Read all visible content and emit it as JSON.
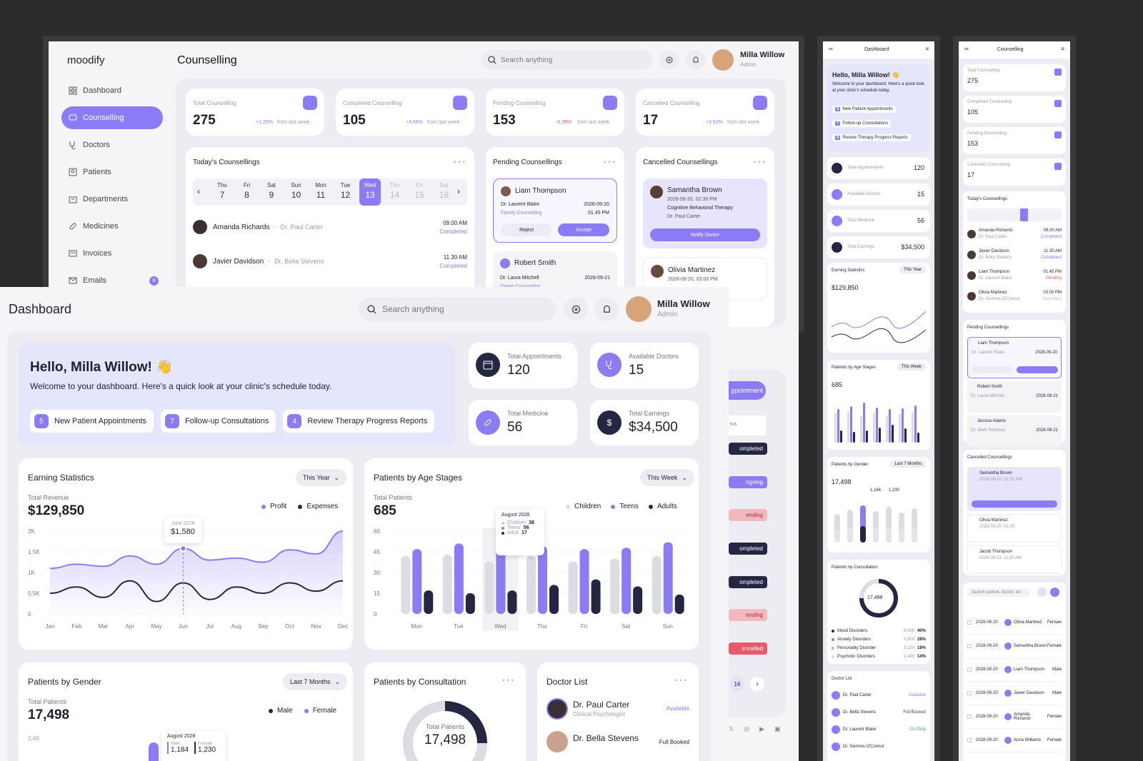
{
  "counselling": {
    "logo": "moodify",
    "title": "Counselling",
    "search_placeholder": "Search anything",
    "user": {
      "name": "Milla Willow",
      "role": "Admin"
    },
    "nav": [
      {
        "label": "Dashboard"
      },
      {
        "label": "Counselling"
      },
      {
        "label": "Doctors"
      },
      {
        "label": "Patients"
      },
      {
        "label": "Departments"
      },
      {
        "label": "Medicines"
      },
      {
        "label": "Invoices"
      },
      {
        "label": "Emails",
        "badge": "6"
      }
    ],
    "stats": [
      {
        "label": "Total Counselling",
        "value": "275",
        "delta": "+1.25%",
        "suffix": "from last week"
      },
      {
        "label": "Completed Counselling",
        "value": "105",
        "delta": "+4.56%",
        "suffix": "from last week"
      },
      {
        "label": "Pending Counselling",
        "value": "153",
        "delta": "-0.78%",
        "suffix": "from last week"
      },
      {
        "label": "Cancelled Counselling",
        "value": "17",
        "delta": "+3.62%",
        "suffix": "from last week"
      }
    ],
    "today": {
      "title": "Today's Counsellings",
      "days": [
        {
          "d": "Thu",
          "n": "7"
        },
        {
          "d": "Fri",
          "n": "8"
        },
        {
          "d": "Sat",
          "n": "9"
        },
        {
          "d": "Sun",
          "n": "10"
        },
        {
          "d": "Mon",
          "n": "11"
        },
        {
          "d": "Tue",
          "n": "12"
        },
        {
          "d": "Wed",
          "n": "13"
        },
        {
          "d": "Thu",
          "n": "14"
        },
        {
          "d": "Fri",
          "n": "15"
        },
        {
          "d": "Sat",
          "n": "16"
        }
      ],
      "items": [
        {
          "patient": "Amanda Richards",
          "doctor": "Dr. Paul Carter",
          "time": "09.00 AM",
          "status": "Completed"
        },
        {
          "patient": "Javier Davidson",
          "doctor": "Dr. Bella Stevens",
          "time": "11.30 AM",
          "status": "Completed"
        }
      ]
    },
    "pending": {
      "title": "Pending Counsellings",
      "items": [
        {
          "patient": "Liam Thompson",
          "doctor": "Dr. Laurent Blake",
          "type": "Family Counseling",
          "date": "2028-09-20",
          "time": "01.45 PM",
          "reject": "Reject",
          "accept": "Accept"
        },
        {
          "patient": "Robert Smith",
          "doctor": "Dr. Laura Mitchell",
          "type": "Group Counseling",
          "date": "2028-09-21"
        }
      ]
    },
    "cancelled": {
      "title": "Cancelled Counsellings",
      "items": [
        {
          "patient": "Samantha Brown",
          "date": "2028-09-20, 02.30 PM",
          "type": "Cognitive Behavioral Therapy",
          "doctor": "Dr. Paul Carter",
          "action": "Notify Doctor"
        },
        {
          "patient": "Olivia Martinez",
          "date": "2028-09-20, 03.00 PM"
        }
      ]
    },
    "partial": {
      "appointment": "ppointment",
      "status_filter": "tus",
      "tags": [
        "ompleted",
        "ngoing",
        "ending",
        "ompleted",
        "ompleted",
        "ending",
        "ancelled"
      ],
      "page": "16"
    }
  },
  "dashboard": {
    "title": "Dashboard",
    "search_placeholder": "Search anything",
    "user": {
      "name": "Milla Willow",
      "role": "Admin"
    },
    "hello": {
      "title": "Hello, Milla Willow! 👋",
      "subtitle": "Welcome to your dashboard. Here's a quick look at your clinic's schedule today.",
      "chips": [
        {
          "n": "5",
          "label": "New Patient Appointments"
        },
        {
          "n": "7",
          "label": "Follow-up Consultations"
        },
        {
          "n": "4",
          "label": "Review Therapy Progress Reports"
        }
      ]
    },
    "kpis": [
      {
        "label": "Total Appointments",
        "value": "120"
      },
      {
        "label": "Available Doctors",
        "value": "15"
      },
      {
        "label": "Total Medicine",
        "value": "56"
      },
      {
        "label": "Total Earnings",
        "value": "$34,500"
      }
    ],
    "earning": {
      "title": "Earning Statistics",
      "filter": "This Year",
      "sub": "Total Revenue",
      "total": "$129,850",
      "legend": [
        "Profit",
        "Expenses"
      ],
      "tooltip": {
        "label": "June 2028",
        "value": "$1,580"
      }
    },
    "age": {
      "title": "Patients by Age Stages",
      "filter": "This Week",
      "sub": "Total Patients",
      "total": "685",
      "legend": [
        "Children",
        "Teens",
        "Adults"
      ],
      "tooltip": {
        "label": "August 2028",
        "rows": [
          {
            "k": "Children",
            "v": "38"
          },
          {
            "k": "Teens",
            "v": "56"
          },
          {
            "k": "Adult",
            "v": "17"
          }
        ]
      }
    },
    "gender": {
      "title": "Patients by Gender",
      "filter": "Last 7 Months",
      "sub": "Total Patients",
      "total": "17,498",
      "legend": [
        "Male",
        "Female"
      ],
      "ytick": "2.4K",
      "tooltip": {
        "label": "August 2028",
        "rows": [
          {
            "k": "Male",
            "v": "1,184"
          },
          {
            "k": "Female",
            "v": "1,230"
          }
        ]
      }
    },
    "consult": {
      "title": "Patients by Consultation",
      "center_label": "Total Patients",
      "center_value": "17,498"
    },
    "doctors": {
      "title": "Doctor List",
      "items": [
        {
          "name": "Dr. Paul Carter",
          "role": "Clinical Psychologist",
          "status": "Available"
        },
        {
          "name": "Dr. Bella Stevens",
          "status": "Full Booked"
        }
      ]
    }
  },
  "chart_data": [
    {
      "type": "area",
      "title": "Earning Statistics",
      "categories": [
        "Jan",
        "Feb",
        "Mar",
        "Apr",
        "May",
        "Jun",
        "Jul",
        "Aug",
        "Sep",
        "Oct",
        "Nov",
        "Dec"
      ],
      "ylim": [
        0,
        2000
      ],
      "yticks": [
        "0",
        "0.5K",
        "1K",
        "1.5K",
        "2K"
      ],
      "series": [
        {
          "name": "Profit",
          "values": [
            1100,
            1200,
            1150,
            1400,
            1200,
            1580,
            1300,
            1350,
            1250,
            1550,
            1450,
            2000
          ]
        },
        {
          "name": "Expenses",
          "values": [
            500,
            650,
            400,
            800,
            300,
            750,
            350,
            650,
            500,
            750,
            550,
            800
          ]
        }
      ]
    },
    {
      "type": "bar",
      "title": "Patients by Age Stages",
      "categories": [
        "Mon",
        "Tue",
        "Wed",
        "Thu",
        "Fri",
        "Sat",
        "Sun"
      ],
      "ylim": [
        0,
        60
      ],
      "yticks": [
        "0",
        "15",
        "30",
        "45",
        "60"
      ],
      "series": [
        {
          "name": "Children",
          "values": [
            42,
            43,
            38,
            42,
            38,
            40,
            42
          ]
        },
        {
          "name": "Teens",
          "values": [
            47,
            51,
            56,
            49,
            47,
            48,
            52
          ]
        },
        {
          "name": "Adults",
          "values": [
            17,
            15,
            17,
            21,
            25,
            20,
            14
          ]
        }
      ]
    }
  ],
  "mobile1": {
    "title": "Dashboard",
    "hello_title": "Hello, Milla Willow! 👋",
    "hello_sub": "Welcome to your dashboard. Here's a quick look at your clinic's schedule today.",
    "chips": [
      {
        "n": "5",
        "label": "New Patient Appointments"
      },
      {
        "n": "7",
        "label": "Follow-up Consultations"
      },
      {
        "n": "4",
        "label": "Review Therapy Progress Reports"
      }
    ],
    "kpis": [
      {
        "label": "Total Appointments",
        "value": "120"
      },
      {
        "label": "Available Doctors",
        "value": "15"
      },
      {
        "label": "Total Medicine",
        "value": "56"
      },
      {
        "label": "Total Earnings",
        "value": "$34,500"
      }
    ],
    "earning": {
      "title": "Earning Statistics",
      "filter": "This Year",
      "total": "$129,850"
    },
    "age": {
      "title": "Patients by Age Stages",
      "filter": "This Week",
      "total": "685"
    },
    "gender": {
      "title": "Patients by Gender",
      "filter": "Last 7 Months",
      "total": "17,498",
      "m": "1,184",
      "f": "1,230"
    },
    "consult": {
      "title": "Patients by Consultation",
      "total": "17,498",
      "rows": [
        {
          "k": "Mood Disorders",
          "n": "6,999",
          "p": "40%"
        },
        {
          "k": "Anxiety Disorders",
          "n": "4,900",
          "p": "28%"
        },
        {
          "k": "Personality Disorder",
          "n": "3,150",
          "p": "18%"
        },
        {
          "k": "Psychotic Disorders",
          "n": "2,449",
          "p": "14%"
        }
      ]
    },
    "doctors": {
      "title": "Doctor List",
      "items": [
        {
          "name": "Dr. Paul Carter",
          "status": "Available"
        },
        {
          "name": "Dr. Bella Stevens",
          "status": "Full Booked"
        },
        {
          "name": "Dr. Laurent Blake",
          "status": "On Duty"
        },
        {
          "name": "Dr. Gemma O'Connor"
        }
      ]
    }
  },
  "mobile2": {
    "title": "Counselling",
    "stats": [
      {
        "label": "Total Counselling",
        "value": "275"
      },
      {
        "label": "Completed Counselling",
        "value": "105"
      },
      {
        "label": "Pending Counselling",
        "value": "153"
      },
      {
        "label": "Cancelled Counselling",
        "value": "17"
      }
    ],
    "today": {
      "title": "Today's Counsellings",
      "items": [
        {
          "p": "Amanda Richards",
          "d": "Dr. Paul Carter",
          "t": "09.00 AM",
          "s": "Completed"
        },
        {
          "p": "Javier Davidson",
          "d": "Dr. Bella Stevens",
          "t": "11.30 AM",
          "s": "Completed"
        },
        {
          "p": "Liam Thompson",
          "d": "Dr. Laurent Blake",
          "t": "01.45 PM",
          "s": "Pending"
        },
        {
          "p": "Olivia Martinez",
          "d": "Dr. Gemma O'Connor",
          "t": "03.00 PM",
          "s": "Cancelled"
        }
      ]
    },
    "pending": {
      "title": "Pending Counsellings",
      "items": [
        {
          "p": "Liam Thompson",
          "d": "Dr. Laurent Blake",
          "date": "2028-09-20"
        },
        {
          "p": "Robert Smith",
          "d": "Dr. Laura Mitchell",
          "date": "2028-09-21"
        },
        {
          "p": "Jessica Adams",
          "d": "Dr. Mark Peterson",
          "date": "2028-09-21"
        }
      ]
    },
    "cancelled": {
      "title": "Cancelled Counsellings",
      "items": [
        {
          "p": "Samantha Brown",
          "s": "2028-09-20, 02.30 PM"
        },
        {
          "p": "Olivia Martinez",
          "s": "2028-09-20, 03.00"
        },
        {
          "p": "Jacob Thompson",
          "s": "2028-09-19, 11.30 AM"
        }
      ]
    },
    "search_placeholder": "Search patient, doctor, etc",
    "rows": [
      {
        "date": "2028-09-20",
        "name": "Olivia Martinez",
        "g": "Female"
      },
      {
        "date": "2028-09-20",
        "name": "Samantha Brown",
        "g": "Female"
      },
      {
        "date": "2028-09-20",
        "name": "Liam Thompson",
        "g": "Male"
      },
      {
        "date": "2028-09-20",
        "name": "Javier Davidson",
        "g": "Male"
      },
      {
        "date": "2028-09-20",
        "name": "Amanda Richards",
        "g": "Female"
      },
      {
        "date": "2028-09-20",
        "name": "Anna Williams",
        "g": "Female"
      }
    ]
  },
  "colors": {
    "accent": "#8b7cf6",
    "dark": "#252641",
    "light": "#e7e7ec",
    "hello_bg": "#e5e5fb"
  }
}
